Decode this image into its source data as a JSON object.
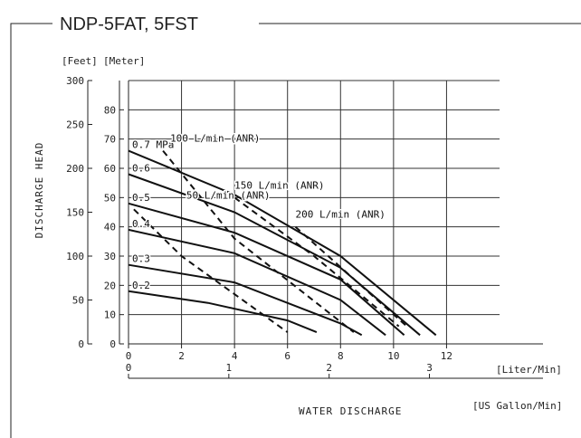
{
  "header": {
    "title": "NDP-5FAT, 5FST"
  },
  "chart_data": {
    "type": "line",
    "y_axis_label": "DISCHARGE HEAD",
    "x_axis_label": "WATER DISCHARGE",
    "feet_unit": "[Feet]",
    "meter_unit": "[Meter]",
    "liter_unit": "[Liter/Min]",
    "gallon_unit": "[US Gallon/Min]",
    "x_range": [
      0,
      14
    ],
    "y_range_meter": [
      0,
      90
    ],
    "y_range_feet": [
      0,
      300
    ],
    "x_ticks_liter": [
      0,
      2,
      4,
      6,
      8,
      10,
      12
    ],
    "x_ticks_gallon": [
      0,
      1,
      2,
      3
    ],
    "y_ticks_meter": [
      0,
      10,
      20,
      30,
      40,
      50,
      60,
      70,
      80
    ],
    "y_ticks_feet": [
      0,
      50,
      100,
      150,
      200,
      250,
      300
    ],
    "grid": true,
    "pressure_series": [
      {
        "name": "0.7 MPa",
        "points": [
          [
            0,
            66
          ],
          [
            4,
            51
          ],
          [
            8,
            30
          ],
          [
            11.6,
            3
          ]
        ]
      },
      {
        "name": "0.6",
        "points": [
          [
            0,
            58
          ],
          [
            4,
            45
          ],
          [
            8,
            26
          ],
          [
            11.0,
            3
          ]
        ]
      },
      {
        "name": "0.5",
        "points": [
          [
            0,
            48
          ],
          [
            4,
            38
          ],
          [
            8,
            22
          ],
          [
            10.4,
            3
          ]
        ]
      },
      {
        "name": "0.4",
        "points": [
          [
            0,
            39
          ],
          [
            4,
            31
          ],
          [
            8,
            15
          ],
          [
            9.7,
            3
          ]
        ]
      },
      {
        "name": "0.3",
        "points": [
          [
            0,
            27
          ],
          [
            4,
            21
          ],
          [
            8,
            7
          ],
          [
            8.8,
            3
          ]
        ]
      },
      {
        "name": "0.2",
        "points": [
          [
            0,
            18
          ],
          [
            3,
            14
          ],
          [
            6,
            8
          ],
          [
            7.1,
            4
          ]
        ]
      }
    ],
    "air_consumption_series": [
      {
        "name": "50 L/min (ANR)",
        "points": [
          [
            0.2,
            46
          ],
          [
            2,
            30
          ],
          [
            6,
            4
          ]
        ]
      },
      {
        "name": "100 L/min (ANR)",
        "points": [
          [
            1.3,
            66
          ],
          [
            4,
            36
          ],
          [
            8.5,
            4
          ]
        ]
      },
      {
        "name": "150 L/min (ANR)",
        "points": [
          [
            4,
            50
          ],
          [
            7,
            30
          ],
          [
            10.2,
            6
          ]
        ]
      },
      {
        "name": "200 L/min (ANR)",
        "points": [
          [
            6.3,
            40
          ],
          [
            10.5,
            6
          ]
        ]
      }
    ]
  }
}
